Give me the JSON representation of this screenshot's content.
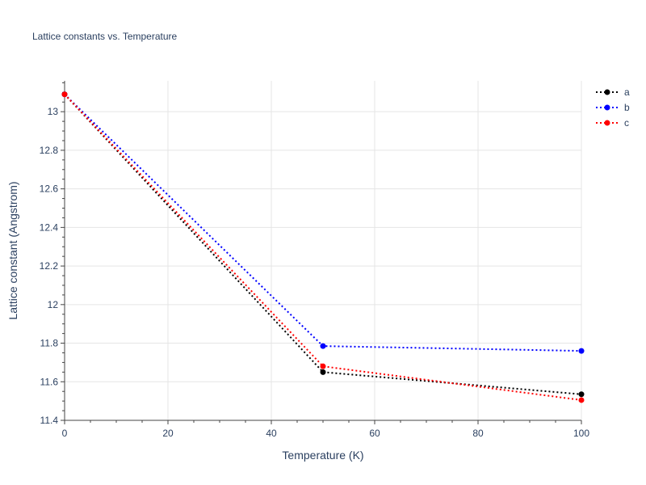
{
  "chart_data": {
    "type": "line",
    "title": "Lattice constants vs. Temperature",
    "xlabel": "Temperature (K)",
    "ylabel": "Lattice constant (Angstrom)",
    "xlim": [
      0,
      100
    ],
    "ylim": [
      11.4,
      13.16
    ],
    "x_ticks": [
      0,
      20,
      40,
      60,
      80,
      100
    ],
    "y_ticks": [
      11.4,
      11.6,
      11.8,
      12,
      12.2,
      12.4,
      12.6,
      12.8,
      13
    ],
    "y_tick_labels": [
      "11.4",
      "11.6",
      "11.8",
      "12",
      "12.2",
      "12.4",
      "12.6",
      "12.8",
      "13"
    ],
    "grid": true,
    "legend_position": "top-right",
    "line_style": "dotted",
    "x": [
      0,
      50,
      100
    ],
    "series": [
      {
        "name": "a",
        "color": "#000000",
        "values": [
          13.09,
          11.65,
          11.535
        ]
      },
      {
        "name": "b",
        "color": "#0000ff",
        "values": [
          13.09,
          11.785,
          11.76
        ]
      },
      {
        "name": "c",
        "color": "#ff0000",
        "values": [
          13.09,
          11.68,
          11.505
        ]
      }
    ]
  }
}
